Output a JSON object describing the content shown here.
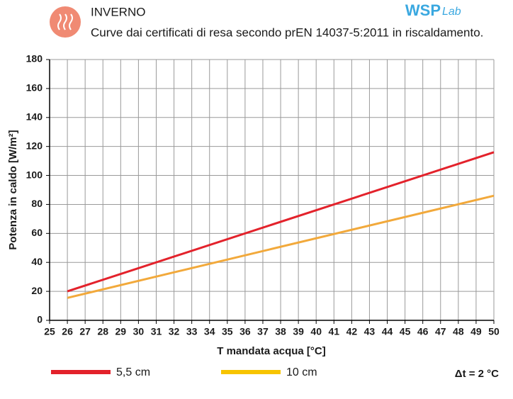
{
  "chart_data": {
    "type": "line",
    "title": "INVERNO",
    "subtitle": "Curve dai certificati di resa secondo prEN 14037-5:2011 in riscaldamento.",
    "logo": {
      "main": "WSP",
      "sub": "Lab"
    },
    "x_label": "T mandata acqua [°C]",
    "y_label": "Potenza in caldo [W/m²]",
    "annotation": "Δt = 2 °C",
    "x": [
      26,
      50
    ],
    "series": [
      {
        "name": "5,5 cm",
        "color": "#e3222b",
        "legend_color": "#e3222b",
        "values": [
          20,
          116
        ]
      },
      {
        "name": "10 cm",
        "color": "#f2a93b",
        "legend_color": "#f7c400",
        "values": [
          15.5,
          86
        ]
      }
    ],
    "xlim": [
      25,
      50
    ],
    "xticks": [
      25,
      26,
      27,
      28,
      29,
      30,
      31,
      32,
      33,
      34,
      35,
      36,
      37,
      38,
      39,
      40,
      41,
      42,
      43,
      44,
      45,
      46,
      47,
      48,
      49,
      50
    ],
    "ylim": [
      0,
      180
    ],
    "yticks": [
      0,
      20,
      40,
      60,
      80,
      100,
      120,
      140,
      160,
      180
    ],
    "grid": true
  }
}
